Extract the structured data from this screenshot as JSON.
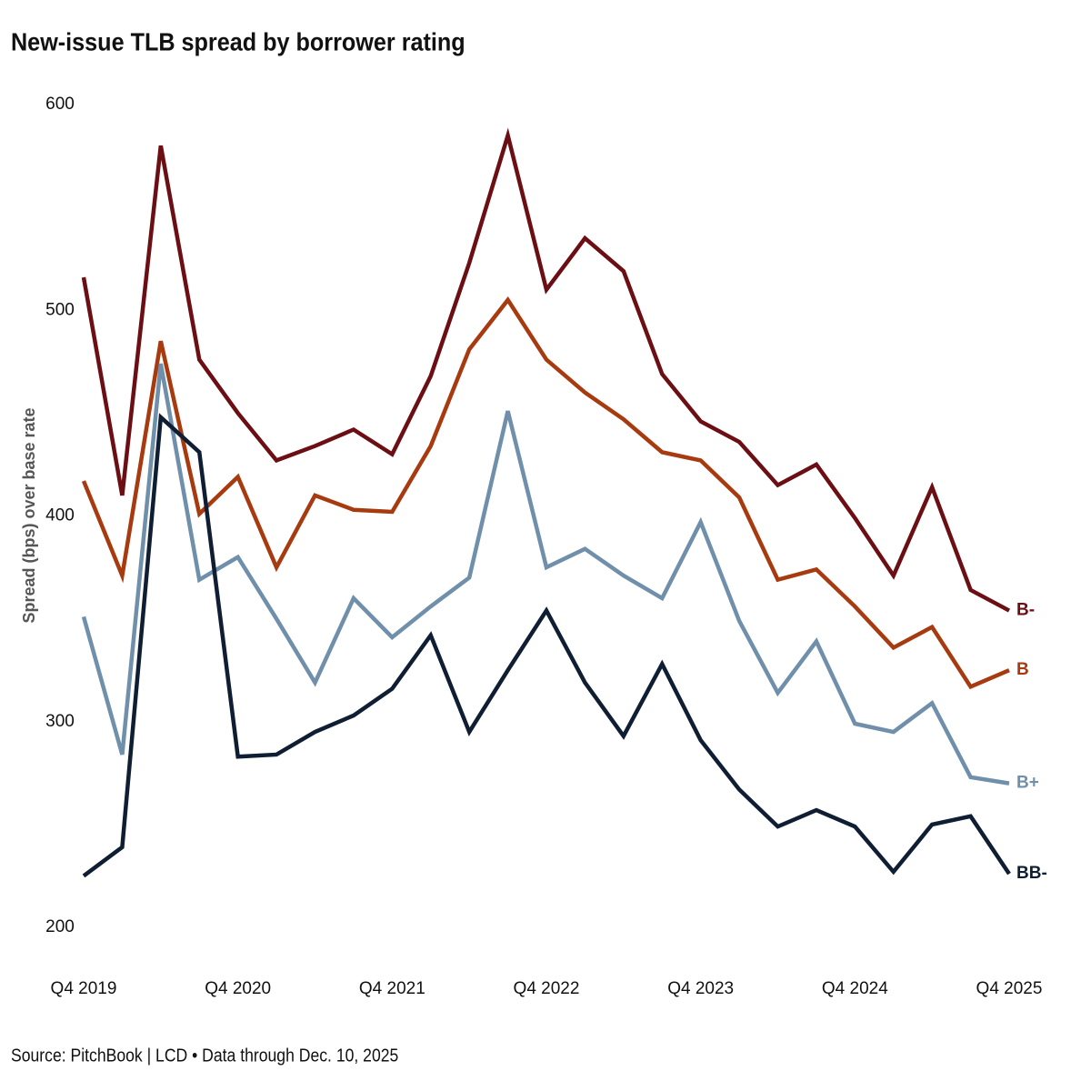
{
  "chart_data": {
    "type": "line",
    "title": "New-issue TLB spread by borrower rating",
    "y_label": "Spread (bps) over base rate",
    "source": "Source: PitchBook | LCD • Data through Dec. 10, 2025",
    "categories": [
      "Q4 2019",
      null,
      null,
      null,
      "Q4 2020",
      null,
      null,
      null,
      "Q4 2021",
      null,
      null,
      null,
      "Q4 2022",
      null,
      null,
      null,
      "Q4 2023",
      null,
      null,
      null,
      "Q4 2024",
      null,
      null,
      null,
      "Q4 2025"
    ],
    "series": [
      {
        "name": "B-",
        "color": "#6b0f14",
        "values": [
          516,
          410,
          580,
          476,
          450,
          427,
          434,
          442,
          430,
          468,
          523,
          585,
          510,
          535,
          519,
          469,
          446,
          436,
          415,
          425,
          399,
          371,
          414,
          364,
          354
        ]
      },
      {
        "name": "B",
        "color": "#a83a10",
        "values": [
          417,
          371,
          485,
          401,
          419,
          375,
          410,
          403,
          402,
          434,
          481,
          505,
          476,
          460,
          447,
          431,
          427,
          409,
          369,
          374,
          356,
          336,
          346,
          317,
          325
        ]
      },
      {
        "name": "B+",
        "color": "#6f8faa",
        "values": [
          351,
          284,
          474,
          369,
          380,
          350,
          319,
          360,
          341,
          356,
          370,
          451,
          375,
          384,
          371,
          360,
          397,
          349,
          314,
          339,
          299,
          295,
          309,
          273,
          270
        ]
      },
      {
        "name": "BB-",
        "color": "#0f1e33",
        "values": [
          225,
          239,
          448,
          431,
          283,
          284,
          295,
          303,
          316,
          342,
          295,
          325,
          354,
          319,
          293,
          328,
          291,
          267,
          249,
          257,
          249,
          227,
          250,
          254,
          226
        ]
      }
    ],
    "ylim": [
      200,
      600
    ],
    "yticks": [
      200,
      300,
      400,
      500,
      600
    ],
    "grid": false
  }
}
